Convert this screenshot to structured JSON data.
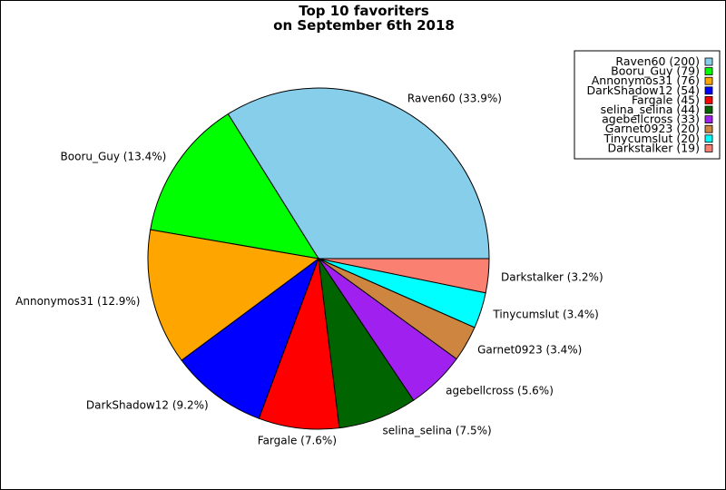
{
  "chart_data": {
    "type": "pie",
    "title_lines": [
      "Top 10 favoriters",
      "on September 6th 2018"
    ],
    "legend_placement": "top-right",
    "slices": [
      {
        "name": "Raven60",
        "value": 200,
        "percent_label": "Raven60 (33.9%)",
        "legend_label": "Raven60 (200)",
        "color": "#87CEEB"
      },
      {
        "name": "Booru_Guy",
        "value": 79,
        "percent_label": "Booru_Guy (13.4%)",
        "legend_label": "Booru_Guy (79)",
        "color": "#00FF00"
      },
      {
        "name": "Annonymos31",
        "value": 76,
        "percent_label": "Annonymos31 (12.9%)",
        "legend_label": "Annonymos31 (76)",
        "color": "#FFA500"
      },
      {
        "name": "DarkShadow12",
        "value": 54,
        "percent_label": "DarkShadow12 (9.2%)",
        "legend_label": "DarkShadow12 (54)",
        "color": "#0000FF"
      },
      {
        "name": "Fargale",
        "value": 45,
        "percent_label": "Fargale (7.6%)",
        "legend_label": "Fargale (45)",
        "color": "#FF0000"
      },
      {
        "name": "selina_selina",
        "value": 44,
        "percent_label": "selina_selina (7.5%)",
        "legend_label": "selina_selina (44)",
        "color": "#006400"
      },
      {
        "name": "agebellcross",
        "value": 33,
        "percent_label": "agebellcross (5.6%)",
        "legend_label": "agebellcross (33)",
        "color": "#A020F0"
      },
      {
        "name": "Garnet0923",
        "value": 20,
        "percent_label": "Garnet0923 (3.4%)",
        "legend_label": "Garnet0923 (20)",
        "color": "#CD853F"
      },
      {
        "name": "Tinycumslut",
        "value": 20,
        "percent_label": "Tinycumslut (3.4%)",
        "legend_label": "Tinycumslut (20)",
        "color": "#00FFFF"
      },
      {
        "name": "Darkstalker",
        "value": 19,
        "percent_label": "Darkstalker (3.2%)",
        "legend_label": "Darkstalker (19)",
        "color": "#FA8072"
      }
    ]
  }
}
